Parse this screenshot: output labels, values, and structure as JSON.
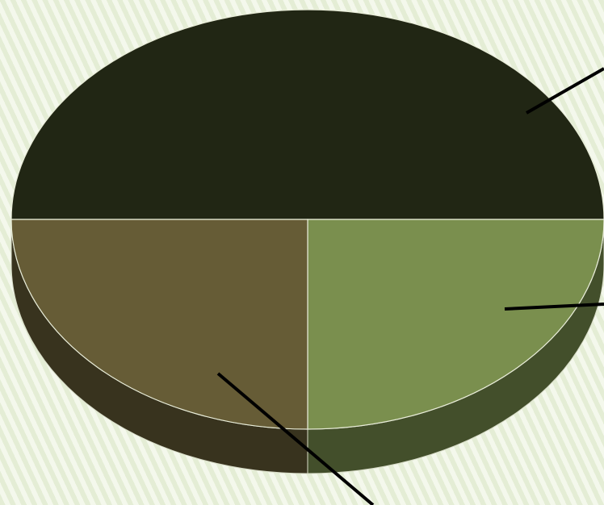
{
  "chart_data": {
    "type": "pie",
    "values": [
      50,
      25,
      25
    ],
    "colors": [
      "#212614",
      "#7a8f4e",
      "#665c36"
    ]
  }
}
